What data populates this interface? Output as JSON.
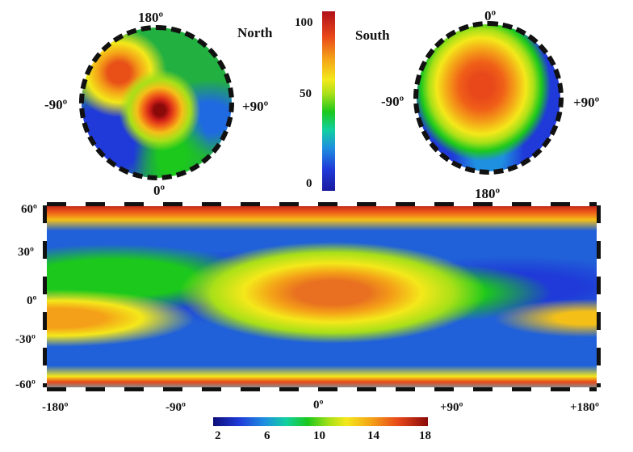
{
  "north_map": {
    "title": "North",
    "top_label": "180º",
    "bottom_label": "0º",
    "left_label": "-90º",
    "right_label": "+90º"
  },
  "south_map": {
    "title": "South",
    "top_label": "0º",
    "bottom_label": "180º",
    "left_label": "-90º",
    "right_label": "+90º"
  },
  "polar_colorbar": {
    "ticks": [
      "100",
      "50",
      "0"
    ]
  },
  "global_map": {
    "lat_labels": [
      "60º",
      "30º",
      "0º",
      "-30º",
      "-60º"
    ],
    "lon_labels": [
      "-180º",
      "-90º",
      "0º",
      "+90º",
      "+180º"
    ]
  },
  "global_colorbar": {
    "ticks": [
      "2",
      "6",
      "10",
      "14",
      "18"
    ]
  },
  "colors": {
    "low": "#1f3ad8",
    "mid": "#1cc81c",
    "high_mid": "#f4e81a",
    "high": "#e8481a",
    "max": "#b0101a"
  }
}
